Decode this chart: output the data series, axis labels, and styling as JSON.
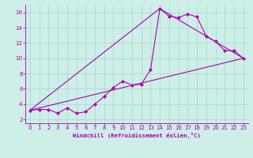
{
  "xlabel": "Windchill (Refroidissement éolien,°C)",
  "background_color": "#ceeee8",
  "grid_color": "#aaddcc",
  "line_color": "#aa00aa",
  "xlim": [
    -0.5,
    23.5
  ],
  "ylim": [
    1.5,
    17.0
  ],
  "yticks": [
    2,
    4,
    6,
    8,
    10,
    12,
    14,
    16
  ],
  "xticks": [
    0,
    1,
    2,
    3,
    4,
    5,
    6,
    7,
    8,
    9,
    10,
    11,
    12,
    13,
    14,
    15,
    16,
    17,
    18,
    19,
    20,
    21,
    22,
    23
  ],
  "line1_x": [
    0,
    1,
    2,
    3,
    4,
    5,
    6,
    7,
    8,
    9,
    10,
    11,
    12,
    13,
    14,
    15,
    16,
    17,
    18,
    19,
    20,
    21,
    22,
    23
  ],
  "line1_y": [
    3.2,
    3.3,
    3.3,
    2.8,
    3.5,
    2.8,
    3.0,
    4.0,
    5.0,
    6.2,
    7.0,
    6.5,
    6.6,
    8.5,
    16.5,
    15.5,
    15.3,
    15.8,
    15.4,
    12.9,
    12.2,
    11.0,
    11.0,
    10.0
  ],
  "line2_x": [
    0,
    23
  ],
  "line2_y": [
    3.2,
    10.0
  ],
  "line3_x": [
    0,
    14,
    23
  ],
  "line3_y": [
    3.2,
    16.5,
    10.0
  ]
}
